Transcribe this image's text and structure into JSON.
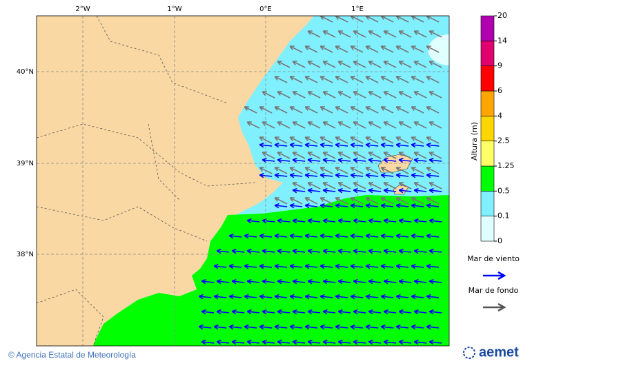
{
  "map": {
    "lon_labels": [
      "2°W",
      "1°W",
      "0°E",
      "1°E"
    ],
    "lat_labels": [
      "40°N",
      "39°N",
      "38°N"
    ]
  },
  "colorbar": {
    "title": "Altura (m)",
    "levels": [
      0,
      0.1,
      0.5,
      1.25,
      2.5,
      4,
      6,
      9,
      14,
      20
    ],
    "colors": [
      "#e0ffff",
      "#80f0ff",
      "#00ff00",
      "#ffff66",
      "#ffd700",
      "#ffa500",
      "#ff0000",
      "#e0006e",
      "#b000b0"
    ]
  },
  "legend": {
    "items": [
      {
        "label": "Mar de viento",
        "color": "#0000ff"
      },
      {
        "label": "Mar de fondo",
        "color": "#555555"
      }
    ]
  },
  "footer": {
    "credit": "© Agencia Estatal de Meteorología",
    "logo": "aemet"
  }
}
